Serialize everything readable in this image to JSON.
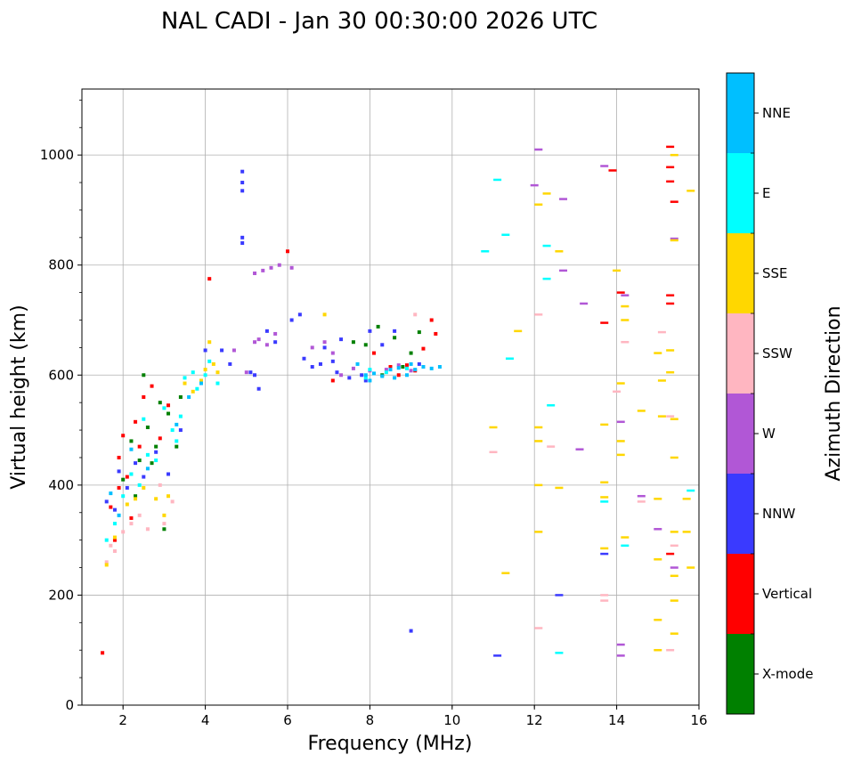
{
  "chart_data": {
    "type": "scatter",
    "title": "NAL CADI - Jan 30 00:30:00 2026 UTC",
    "xlabel": "Frequency (MHz)",
    "ylabel": "Virtual height (km)",
    "xlim": [
      1,
      16
    ],
    "ylim": [
      0,
      1120
    ],
    "x_ticks": [
      2,
      4,
      6,
      8,
      10,
      12,
      14,
      16
    ],
    "x_tick_labels": [
      "2",
      "4",
      "6",
      "8",
      "10",
      "12",
      "14",
      "16"
    ],
    "y_ticks": [
      0,
      200,
      400,
      600,
      800,
      1000
    ],
    "y_tick_labels": [
      "0",
      "200",
      "400",
      "600",
      "800",
      "1000"
    ],
    "grid": true,
    "colorbar": {
      "label": "Azimuth Direction",
      "categories": [
        {
          "name": "X-mode",
          "color": "#008000"
        },
        {
          "name": "Vertical",
          "color": "#ff0000"
        },
        {
          "name": "NNW",
          "color": "#3a3aff"
        },
        {
          "name": "W",
          "color": "#b157d6"
        },
        {
          "name": "SSW",
          "color": "#ffb6c1"
        },
        {
          "name": "SSE",
          "color": "#ffd700"
        },
        {
          "name": "E",
          "color": "#00ffff"
        },
        {
          "name": "NNE",
          "color": "#00bfff"
        }
      ]
    },
    "series": [
      {
        "name": "X-mode",
        "points": [
          [
            2.2,
            480
          ],
          [
            2.4,
            445
          ],
          [
            2.6,
            505
          ],
          [
            2.8,
            470
          ],
          [
            3.1,
            530
          ],
          [
            3.3,
            470
          ],
          [
            2.5,
            600
          ],
          [
            7.9,
            655
          ],
          [
            8.2,
            688
          ],
          [
            8.6,
            668
          ],
          [
            9.2,
            678
          ],
          [
            8.3,
            600
          ],
          [
            7.6,
            660
          ],
          [
            8.8,
            615
          ],
          [
            9.0,
            640
          ],
          [
            2.9,
            550
          ],
          [
            3.4,
            560
          ],
          [
            2.0,
            410
          ],
          [
            2.3,
            380
          ],
          [
            3.0,
            320
          ],
          [
            2.7,
            440
          ]
        ]
      },
      {
        "name": "Vertical",
        "points": [
          [
            1.5,
            95
          ],
          [
            1.7,
            360
          ],
          [
            1.9,
            395
          ],
          [
            1.9,
            450
          ],
          [
            2.0,
            490
          ],
          [
            2.1,
            415
          ],
          [
            2.3,
            515
          ],
          [
            2.4,
            470
          ],
          [
            2.5,
            560
          ],
          [
            2.7,
            580
          ],
          [
            2.9,
            485
          ],
          [
            3.1,
            545
          ],
          [
            4.1,
            775
          ],
          [
            6.0,
            825
          ],
          [
            7.1,
            590
          ],
          [
            8.1,
            640
          ],
          [
            8.9,
            618
          ],
          [
            9.1,
            608
          ],
          [
            9.3,
            648
          ],
          [
            9.5,
            700
          ],
          [
            9.6,
            675
          ],
          [
            15.3,
            1015
          ],
          [
            15.3,
            978
          ],
          [
            15.3,
            952
          ],
          [
            15.4,
            915
          ],
          [
            15.3,
            745
          ],
          [
            15.3,
            730
          ],
          [
            15.3,
            275
          ],
          [
            13.9,
            972
          ],
          [
            13.7,
            695
          ],
          [
            14.1,
            750
          ],
          [
            8.5,
            615
          ],
          [
            8.7,
            600
          ],
          [
            1.8,
            300
          ],
          [
            2.2,
            340
          ]
        ]
      },
      {
        "name": "NNW",
        "points": [
          [
            1.6,
            370
          ],
          [
            1.8,
            355
          ],
          [
            1.9,
            425
          ],
          [
            2.1,
            395
          ],
          [
            2.3,
            440
          ],
          [
            2.5,
            415
          ],
          [
            2.8,
            460
          ],
          [
            3.1,
            420
          ],
          [
            3.4,
            500
          ],
          [
            4.0,
            645
          ],
          [
            4.4,
            645
          ],
          [
            4.6,
            620
          ],
          [
            4.9,
            950
          ],
          [
            4.9,
            970
          ],
          [
            4.9,
            935
          ],
          [
            4.9,
            850
          ],
          [
            4.9,
            840
          ],
          [
            5.2,
            600
          ],
          [
            5.3,
            575
          ],
          [
            5.5,
            680
          ],
          [
            5.7,
            660
          ],
          [
            6.1,
            700
          ],
          [
            6.3,
            710
          ],
          [
            6.4,
            630
          ],
          [
            6.6,
            615
          ],
          [
            6.9,
            650
          ],
          [
            7.1,
            625
          ],
          [
            7.3,
            665
          ],
          [
            7.5,
            595
          ],
          [
            7.8,
            600
          ],
          [
            7.9,
            590
          ],
          [
            8.0,
            680
          ],
          [
            8.3,
            655
          ],
          [
            8.6,
            680
          ],
          [
            9.0,
            135
          ],
          [
            9.2,
            620
          ],
          [
            11.1,
            90
          ],
          [
            12.6,
            200
          ],
          [
            13.7,
            275
          ],
          [
            5.1,
            605
          ],
          [
            6.8,
            620
          ],
          [
            7.2,
            605
          ]
        ]
      },
      {
        "name": "W",
        "points": [
          [
            5.2,
            660
          ],
          [
            5.3,
            665
          ],
          [
            5.5,
            655
          ],
          [
            5.7,
            675
          ],
          [
            5.4,
            790
          ],
          [
            5.6,
            795
          ],
          [
            5.8,
            800
          ],
          [
            5.2,
            785
          ],
          [
            6.1,
            795
          ],
          [
            6.6,
            650
          ],
          [
            6.9,
            660
          ],
          [
            7.1,
            640
          ],
          [
            7.3,
            600
          ],
          [
            7.6,
            612
          ],
          [
            8.0,
            608
          ],
          [
            8.4,
            610
          ],
          [
            8.7,
            618
          ],
          [
            9.0,
            608
          ],
          [
            12.0,
            945
          ],
          [
            12.7,
            920
          ],
          [
            12.1,
            1010
          ],
          [
            13.2,
            730
          ],
          [
            13.1,
            465
          ],
          [
            13.7,
            980
          ],
          [
            14.1,
            515
          ],
          [
            14.1,
            110
          ],
          [
            14.1,
            90
          ],
          [
            14.2,
            745
          ],
          [
            14.6,
            380
          ],
          [
            15.0,
            320
          ],
          [
            15.4,
            250
          ],
          [
            15.4,
            848
          ],
          [
            12.7,
            790
          ],
          [
            4.7,
            645
          ],
          [
            5.0,
            605
          ]
        ]
      },
      {
        "name": "SSW",
        "points": [
          [
            1.6,
            260
          ],
          [
            1.7,
            290
          ],
          [
            1.8,
            280
          ],
          [
            2.0,
            315
          ],
          [
            2.2,
            330
          ],
          [
            2.4,
            345
          ],
          [
            2.6,
            320
          ],
          [
            3.0,
            330
          ],
          [
            2.9,
            400
          ],
          [
            3.2,
            370
          ],
          [
            9.1,
            710
          ],
          [
            11.0,
            460
          ],
          [
            12.1,
            140
          ],
          [
            12.4,
            470
          ],
          [
            13.7,
            200
          ],
          [
            13.7,
            190
          ],
          [
            14.0,
            570
          ],
          [
            14.2,
            660
          ],
          [
            14.6,
            370
          ],
          [
            15.1,
            678
          ],
          [
            15.3,
            525
          ],
          [
            15.4,
            290
          ],
          [
            15.3,
            100
          ],
          [
            12.1,
            710
          ]
        ]
      },
      {
        "name": "SSE",
        "points": [
          [
            1.6,
            255
          ],
          [
            1.8,
            305
          ],
          [
            2.1,
            365
          ],
          [
            2.3,
            375
          ],
          [
            2.5,
            395
          ],
          [
            2.8,
            375
          ],
          [
            3.0,
            345
          ],
          [
            3.1,
            380
          ],
          [
            3.5,
            585
          ],
          [
            3.7,
            570
          ],
          [
            3.9,
            590
          ],
          [
            4.0,
            610
          ],
          [
            4.1,
            660
          ],
          [
            4.2,
            620
          ],
          [
            4.3,
            605
          ],
          [
            6.9,
            710
          ],
          [
            11.0,
            505
          ],
          [
            11.3,
            240
          ],
          [
            12.1,
            910
          ],
          [
            12.1,
            505
          ],
          [
            12.1,
            400
          ],
          [
            12.1,
            315
          ],
          [
            12.1,
            480
          ],
          [
            12.6,
            825
          ],
          [
            12.6,
            395
          ],
          [
            12.3,
            930
          ],
          [
            13.7,
            405
          ],
          [
            13.7,
            378
          ],
          [
            13.7,
            510
          ],
          [
            14.2,
            305
          ],
          [
            14.2,
            700
          ],
          [
            14.2,
            725
          ],
          [
            14.1,
            585
          ],
          [
            14.1,
            480
          ],
          [
            14.1,
            455
          ],
          [
            15.0,
            640
          ],
          [
            15.1,
            590
          ],
          [
            15.1,
            525
          ],
          [
            15.0,
            375
          ],
          [
            15.0,
            155
          ],
          [
            15.3,
            645
          ],
          [
            15.3,
            605
          ],
          [
            15.4,
            520
          ],
          [
            15.4,
            450
          ],
          [
            15.4,
            315
          ],
          [
            15.4,
            235
          ],
          [
            15.4,
            190
          ],
          [
            15.4,
            130
          ],
          [
            15.4,
            1000
          ],
          [
            15.4,
            845
          ],
          [
            15.7,
            315
          ],
          [
            15.8,
            250
          ],
          [
            15.8,
            935
          ],
          [
            15.7,
            375
          ],
          [
            15.0,
            265
          ],
          [
            15.0,
            100
          ],
          [
            13.7,
            285
          ],
          [
            14.0,
            790
          ],
          [
            14.6,
            535
          ],
          [
            11.6,
            680
          ]
        ]
      },
      {
        "name": "E",
        "points": [
          [
            1.6,
            300
          ],
          [
            1.8,
            330
          ],
          [
            2.0,
            380
          ],
          [
            2.2,
            420
          ],
          [
            2.4,
            400
          ],
          [
            2.6,
            455
          ],
          [
            2.8,
            445
          ],
          [
            3.0,
            540
          ],
          [
            3.2,
            500
          ],
          [
            3.4,
            525
          ],
          [
            3.5,
            595
          ],
          [
            3.7,
            605
          ],
          [
            3.8,
            575
          ],
          [
            4.0,
            600
          ],
          [
            4.1,
            625
          ],
          [
            7.9,
            595
          ],
          [
            8.0,
            610
          ],
          [
            10.8,
            825
          ],
          [
            11.1,
            955
          ],
          [
            11.3,
            855
          ],
          [
            11.4,
            630
          ],
          [
            12.3,
            775
          ],
          [
            12.4,
            545
          ],
          [
            12.3,
            835
          ],
          [
            12.6,
            95
          ],
          [
            13.7,
            370
          ],
          [
            14.2,
            290
          ],
          [
            15.8,
            390
          ],
          [
            2.5,
            520
          ],
          [
            3.3,
            480
          ],
          [
            4.3,
            585
          ],
          [
            8.4,
            605
          ],
          [
            8.9,
            612
          ]
        ]
      },
      {
        "name": "NNE",
        "points": [
          [
            1.7,
            385
          ],
          [
            1.9,
            345
          ],
          [
            2.2,
            465
          ],
          [
            2.6,
            430
          ],
          [
            3.3,
            510
          ],
          [
            3.6,
            560
          ],
          [
            3.9,
            585
          ],
          [
            7.7,
            620
          ],
          [
            7.9,
            600
          ],
          [
            8.1,
            603
          ],
          [
            8.3,
            598
          ],
          [
            8.5,
            610
          ],
          [
            8.7,
            613
          ],
          [
            8.9,
            600
          ],
          [
            9.1,
            610
          ],
          [
            9.3,
            615
          ],
          [
            9.5,
            612
          ],
          [
            9.7,
            615
          ],
          [
            8.0,
            590
          ],
          [
            8.6,
            595
          ],
          [
            9.0,
            620
          ]
        ]
      }
    ]
  }
}
